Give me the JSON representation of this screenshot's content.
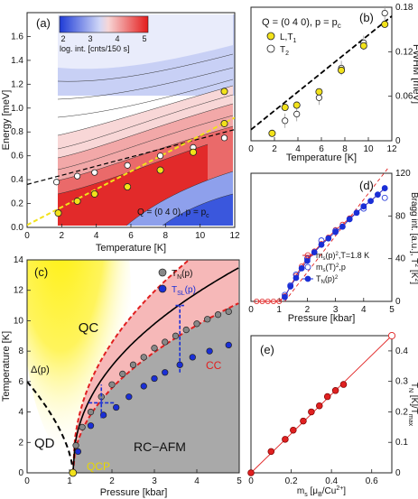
{
  "chart_data": [
    {
      "panel": "(a)",
      "type": "heatmap",
      "xlabel": "Temperature [K]",
      "ylabel": "Energy [meV]",
      "xlim": [
        0,
        12
      ],
      "ylim": [
        0,
        1.8
      ],
      "xticks": [
        "0",
        "2",
        "4",
        "6",
        "8",
        "10",
        "12"
      ],
      "yticks": [
        "0.0",
        "0.2",
        "0.4",
        "0.6",
        "0.8",
        "1.0",
        "1.2",
        "1.4",
        "1.6"
      ],
      "inset_text": "Q = (0 4 0), p = p",
      "inset_sub": "c",
      "colorbar": {
        "ticks": [
          "2",
          "3",
          "4",
          "5"
        ],
        "label": "log. int. [cnts/150 s]",
        "range": [
          2,
          5
        ]
      },
      "points_open": {
        "x": [
          1.7,
          2.9,
          3.9,
          5.8,
          7.7,
          9.6,
          11.4
        ],
        "y": [
          0.38,
          0.43,
          0.46,
          0.52,
          0.6,
          0.67,
          0.75
        ]
      },
      "points_yellow": {
        "x": [
          1.8,
          2.9,
          3.9,
          5.8,
          7.7,
          9.6,
          11.4
        ],
        "y": [
          0.12,
          0.22,
          0.28,
          0.34,
          0.48,
          0.63,
          0.87
        ]
      },
      "points_yellow_high": {
        "x": [
          11.4
        ],
        "y": [
          1.14
        ]
      },
      "fit_dashed_black": {
        "x": [
          0,
          12
        ],
        "y": [
          0.36,
          0.82
        ]
      },
      "fit_dashed_yellow": {
        "x": [
          0,
          12
        ],
        "y": [
          0.02,
          0.92
        ]
      }
    },
    {
      "panel": "(b)",
      "type": "scatter",
      "xlabel": "Temperature [K]",
      "ylabel": "FWHM [meV]",
      "xlim": [
        0,
        12
      ],
      "ylim": [
        0,
        0.18
      ],
      "xticks": [
        "0",
        "2",
        "4",
        "6",
        "8",
        "10",
        "12"
      ],
      "yticks": [
        "0",
        "0.06",
        "0.12",
        "0.18"
      ],
      "header": "Q = (0 4 0), p = p",
      "header_sub": "c",
      "series": [
        {
          "name": "L,T",
          "name_sub": "1",
          "x": [
            1.8,
            2.9,
            3.9,
            5.8,
            7.7,
            9.6,
            11.4
          ],
          "y": [
            0.01,
            0.045,
            0.048,
            0.066,
            0.095,
            0.128,
            0.157
          ]
        },
        {
          "name": "T",
          "name_sub": "2",
          "x": [
            2.9,
            3.9,
            5.8,
            7.7,
            9.6,
            11.4
          ],
          "y": [
            0.027,
            0.036,
            0.058,
            0.098,
            0.132,
            0.172
          ]
        }
      ],
      "fit": {
        "x": [
          0,
          12
        ],
        "y": [
          0.015,
          0.168
        ]
      }
    },
    {
      "panel": "(c)",
      "type": "scatter",
      "xlabel": "Pressure [kbar]",
      "ylabel": "Temperature [K]",
      "xlim": [
        0,
        5
      ],
      "ylim": [
        0,
        14
      ],
      "xticks": [
        "0",
        "1",
        "2",
        "3",
        "4",
        "5"
      ],
      "yticks": [
        "0",
        "2",
        "4",
        "6",
        "8",
        "10",
        "12",
        "14"
      ],
      "series": [
        {
          "name": "T",
          "name_sub": "N",
          "name_tail": "(p)",
          "x": [
            1.15,
            1.3,
            1.5,
            1.75,
            2.0,
            2.25,
            2.5,
            2.75,
            3.0,
            3.25,
            3.5,
            3.75,
            4.0,
            4.25,
            4.5,
            4.75
          ],
          "y": [
            1.8,
            3.0,
            4.0,
            5.0,
            5.8,
            6.5,
            7.1,
            7.6,
            8.2,
            8.6,
            9.0,
            9.4,
            9.8,
            10.1,
            10.4,
            10.6
          ]
        },
        {
          "name": "T",
          "name_sub": "SL",
          "name_tail": "(p)",
          "x": [
            1.2,
            1.5,
            1.8,
            2.1,
            2.4,
            2.75,
            3.0,
            3.25,
            3.6,
            3.9,
            4.3,
            4.75
          ],
          "y": [
            1.4,
            3.1,
            3.8,
            4.3,
            5.0,
            5.7,
            6.2,
            6.6,
            7.1,
            7.6,
            8.0,
            8.4
          ]
        }
      ],
      "region_labels": [
        "QC",
        "QD",
        "RC−AFM",
        "QCP",
        "CC",
        "Δ(p)"
      ]
    },
    {
      "panel": "(d)",
      "type": "scatter",
      "xlabel": "Pressure [kbar]",
      "ylabel": "Bragg int. [a.u.], T",
      "ylabel_sup": "2",
      "ylabel_tail": " [K",
      "ylabel_end": "]",
      "xlim": [
        0,
        5
      ],
      "ylim": [
        0,
        120
      ],
      "xticks": [
        "0",
        "1",
        "2",
        "3",
        "4",
        "5"
      ],
      "yticks": [
        "0",
        "40",
        "80",
        "120"
      ],
      "series": [
        {
          "name": "m",
          "name_sub": "s",
          "name_tail": "(p)",
          "name_sup": "2",
          "name_end": ",T=1.8 K",
          "x": [
            0.2,
            0.4,
            0.6,
            0.8,
            1.0,
            1.2,
            1.4,
            1.6,
            1.8,
            2.0,
            2.25,
            2.5,
            2.75,
            3.0,
            3.25,
            3.5,
            3.75,
            4.0,
            4.25,
            4.5,
            4.75
          ],
          "y": [
            0,
            0,
            0,
            0,
            0,
            5,
            14,
            24,
            33,
            40,
            47,
            54,
            60,
            67,
            72,
            78,
            83,
            89,
            94,
            100,
            106
          ]
        },
        {
          "name": "m",
          "name_sub": "s",
          "name_tail": "(T)",
          "name_sup": "2",
          "name_end": ",p",
          "x": [
            1.2,
            1.4,
            1.6,
            2.0,
            2.5,
            3.0,
            3.5,
            4.0,
            4.75
          ],
          "y": [
            6,
            15,
            25,
            40,
            57,
            66,
            77,
            87,
            97
          ]
        },
        {
          "name": "T",
          "name_sub": "N",
          "name_tail": "(p)",
          "name_sup": "2",
          "name_end": "",
          "x": [
            1.2,
            1.4,
            1.6,
            1.8,
            2.0,
            2.25,
            2.5,
            2.75,
            3.0,
            3.25,
            3.5,
            3.75,
            4.0,
            4.25,
            4.5,
            4.75
          ],
          "y": [
            4,
            14,
            22,
            31,
            38,
            46,
            53,
            59,
            65,
            70,
            77,
            83,
            89,
            94,
            100,
            106
          ]
        }
      ],
      "dashed_fit": {
        "x": [
          1.2,
          4.9
        ],
        "y": [
          0,
          126
        ]
      }
    },
    {
      "panel": "(e)",
      "type": "scatter",
      "xlabel": "m",
      "xlabel_sub": "s",
      "xlabel_tail": " [μ",
      "xlabel_sub2": "B",
      "xlabel_end": "/Cu",
      "xlabel_sup": "2+",
      "xlabel_close": "]",
      "ylabel": "T",
      "ylabel_sub": "N",
      "ylabel_tail": " [K]/T",
      "ylabel_sub2": "max",
      "xlim": [
        0,
        0.7
      ],
      "ylim": [
        0,
        0.45
      ],
      "xticks": [
        "0",
        "0.2",
        "0.4",
        "0.6"
      ],
      "yticks": [
        "0",
        "0.1",
        "0.2",
        "0.3",
        "0.4"
      ],
      "points": {
        "x": [
          0.0,
          0.1,
          0.17,
          0.21,
          0.26,
          0.3,
          0.34,
          0.38,
          0.42,
          0.46
        ],
        "y": [
          0.0,
          0.07,
          0.11,
          0.14,
          0.17,
          0.2,
          0.22,
          0.25,
          0.27,
          0.29
        ]
      },
      "open_point": {
        "x": [
          0.7
        ],
        "y": [
          0.45
        ]
      },
      "fit": {
        "x": [
          0,
          0.7
        ],
        "y": [
          0,
          0.45
        ]
      }
    }
  ],
  "colors": {
    "yellow": "#f2e21a",
    "grey": "#888888",
    "blue": "#1a2fd6",
    "red": "#e02020",
    "pink": "#f6b8b8",
    "gray_region": "#a9a9a9"
  }
}
